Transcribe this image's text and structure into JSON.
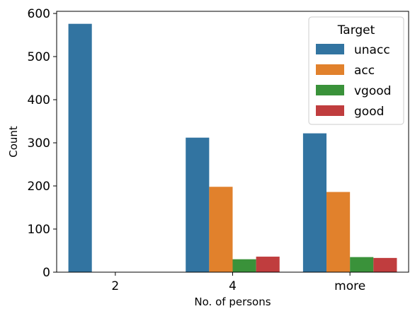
{
  "chart_data": {
    "type": "bar",
    "categories": [
      "2",
      "4",
      "more"
    ],
    "series": [
      {
        "name": "unacc",
        "values": [
          576,
          312,
          322
        ],
        "color": "#3274a1"
      },
      {
        "name": "acc",
        "values": [
          0,
          198,
          186
        ],
        "color": "#e1812c"
      },
      {
        "name": "vgood",
        "values": [
          0,
          30,
          35
        ],
        "color": "#3a923a"
      },
      {
        "name": "good",
        "values": [
          0,
          36,
          33
        ],
        "color": "#c03d3e"
      }
    ],
    "xlabel": "No. of persons",
    "ylabel": "Count",
    "ylim": [
      0,
      605
    ],
    "yticks": [
      0,
      100,
      200,
      300,
      400,
      500,
      600
    ],
    "legend": {
      "title": "Target",
      "position": "top-right"
    },
    "grid": false
  }
}
